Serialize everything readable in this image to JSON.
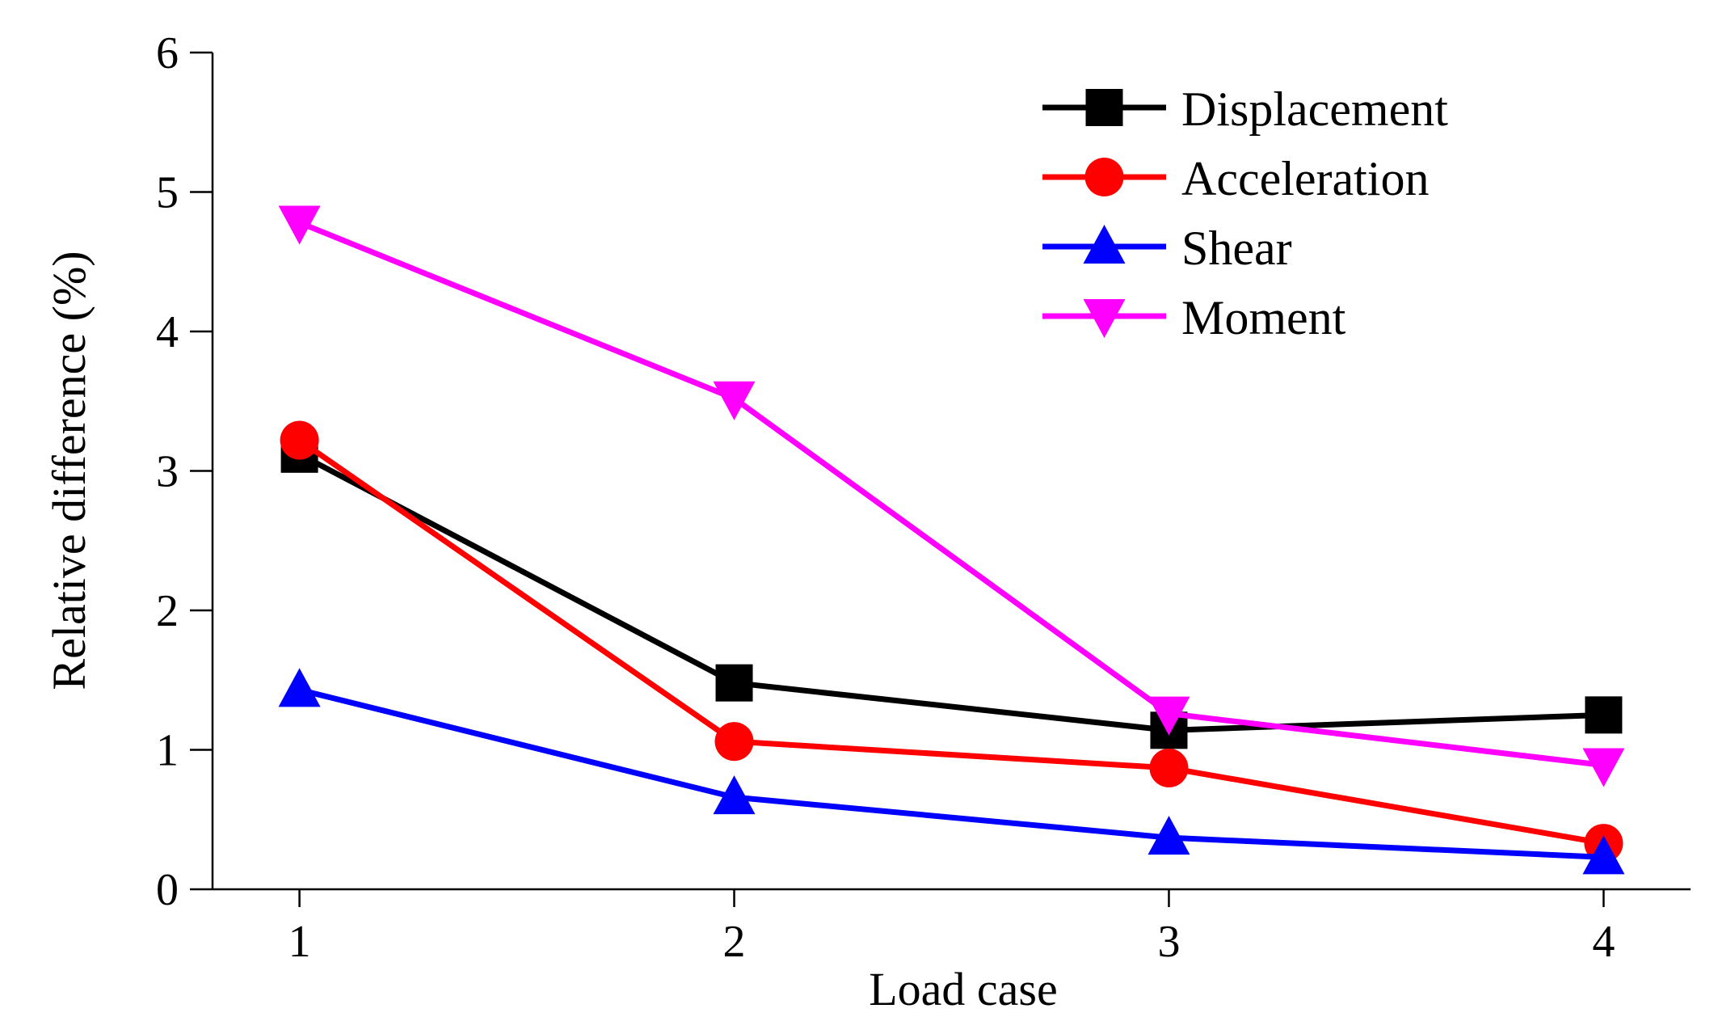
{
  "chart_data": {
    "type": "line",
    "title": "",
    "xlabel": "Load case",
    "ylabel": "Relative difference (%)",
    "x": [
      1,
      2,
      3,
      4
    ],
    "x_tick_labels": [
      "1",
      "2",
      "3",
      "4"
    ],
    "y_tick_values": [
      0,
      1,
      2,
      3,
      4,
      5,
      6
    ],
    "y_tick_labels": [
      "0",
      "1",
      "2",
      "3",
      "4",
      "5",
      "6"
    ],
    "xlim": [
      0.8,
      4.2
    ],
    "ylim": [
      0,
      6
    ],
    "grid": false,
    "legend_position": "top-right",
    "series": [
      {
        "name": "Displacement",
        "marker": "square",
        "color": "#000000",
        "values": [
          3.12,
          1.48,
          1.14,
          1.25
        ]
      },
      {
        "name": "Acceleration",
        "marker": "circle",
        "color": "#ff0000",
        "values": [
          3.22,
          1.06,
          0.87,
          0.33
        ]
      },
      {
        "name": "Shear",
        "marker": "triangle-up",
        "color": "#0000ff",
        "values": [
          1.43,
          0.66,
          0.37,
          0.23
        ]
      },
      {
        "name": "Moment",
        "marker": "triangle-down",
        "color": "#ff00ff",
        "values": [
          4.78,
          3.52,
          1.26,
          0.89
        ]
      }
    ]
  }
}
